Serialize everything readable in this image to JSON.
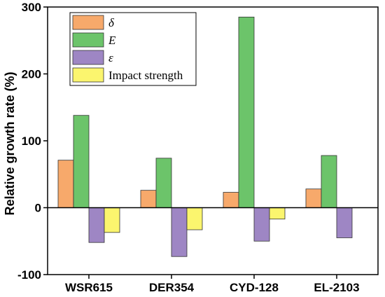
{
  "chart_data": {
    "type": "bar",
    "categories": [
      "WSR615",
      "DER354",
      "CYD-128",
      "EL-2103"
    ],
    "series": [
      {
        "name": "δ",
        "italic": true,
        "color": "#f7a96b",
        "values": [
          71,
          26,
          23,
          28
        ]
      },
      {
        "name": "E",
        "italic": true,
        "color": "#6cc46a",
        "values": [
          138,
          74,
          285,
          78
        ]
      },
      {
        "name": "ε",
        "italic": true,
        "color": "#9e86c4",
        "values": [
          -52,
          -73,
          -50,
          -45
        ]
      },
      {
        "name": "Impact strength",
        "italic": false,
        "color": "#fbf56e",
        "values": [
          -37,
          -33,
          -17,
          null
        ]
      }
    ],
    "ylabel": "Relative growth rate (%)",
    "xlabel": "",
    "ylim": [
      -100,
      300
    ],
    "yticks": [
      -100,
      0,
      100,
      200,
      300
    ],
    "grid": false,
    "legend_position": "top-left"
  }
}
